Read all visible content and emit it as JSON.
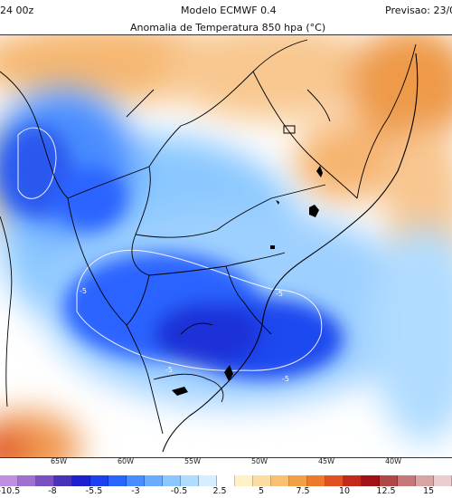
{
  "header": {
    "init_label": "24 00z",
    "model_label": "Modelo ECMWF 0.4",
    "forecast_label": "Previsao: 23/0",
    "map_title": "Anomalia de Temperatura 850 hpa (°C)"
  },
  "map": {
    "contour_label": "-5",
    "anomaly_negative_color": "#1f3fe0",
    "anomaly_positive_color": "#f2a045",
    "land_border_color": "#000000"
  },
  "longitude_labels": [
    "65W",
    "60W",
    "55W",
    "50W",
    "45W",
    "40W"
  ],
  "colorbar": {
    "colors": [
      "#c090e0",
      "#a070d0",
      "#7a50c0",
      "#4a32b8",
      "#1e20d0",
      "#1a40f0",
      "#2a64ff",
      "#4a8cff",
      "#6aacff",
      "#8ac8ff",
      "#b0dcff",
      "#d6eeff",
      "#ffffff",
      "#fff0c8",
      "#fcdca0",
      "#f8c070",
      "#f2a045",
      "#ec7a2a",
      "#e05020",
      "#c42818",
      "#a01014",
      "#b04848",
      "#c67878",
      "#d8a4a4",
      "#eccccc"
    ],
    "labels": [
      "-10.5",
      "-8",
      "-5.5",
      "-3",
      "-0.5",
      "2.5",
      "5",
      "7.5",
      "10",
      "12.5",
      "15"
    ]
  }
}
